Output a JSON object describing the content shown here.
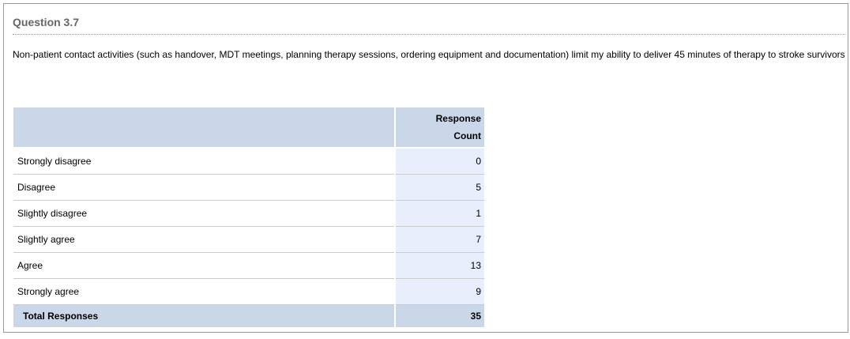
{
  "question": {
    "title": "Question 3.7",
    "text": "Non-patient contact activities (such as handover, MDT meetings, planning therapy sessions, ordering equipment and documentation) limit my ability to deliver 45 minutes of therapy to stroke survivors"
  },
  "table": {
    "header": {
      "label": "",
      "count_line1": "Response",
      "count_line2": "Count"
    },
    "rows": [
      {
        "label": "Strongly disagree",
        "count": "0"
      },
      {
        "label": "Disagree",
        "count": "5"
      },
      {
        "label": "Slightly disagree",
        "count": "1"
      },
      {
        "label": "Slightly agree",
        "count": "7"
      },
      {
        "label": "Agree",
        "count": "13"
      },
      {
        "label": "Strongly agree",
        "count": "9"
      }
    ],
    "total": {
      "label": "Total Responses",
      "count": "35"
    }
  },
  "colors": {
    "header_bg": "#c9d7e8",
    "count_cell_bg": "#e8eefb",
    "title": "#666666"
  }
}
